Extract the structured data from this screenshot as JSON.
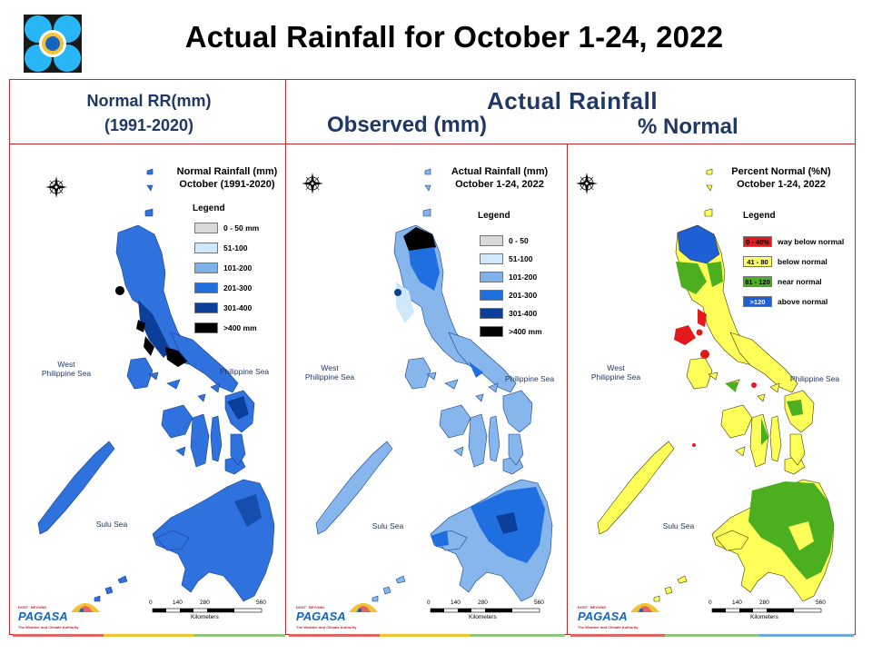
{
  "title": "Actual Rainfall for October 1-24, 2022",
  "headers": {
    "normal_line1": "Normal RR(mm)",
    "normal_line2": "(1991-2020)",
    "actual": "Actual Rainfall",
    "observed": "Observed (mm)",
    "percent": "% Normal"
  },
  "panels": [
    {
      "title_line1": "Normal Rainfall (mm)",
      "title_line2": "October (1991-2020)",
      "legend_title": "Legend",
      "legend": [
        {
          "label": "0 - 50 mm",
          "color": "#d9d9d9"
        },
        {
          "label": "51-100",
          "color": "#cfe8fb"
        },
        {
          "label": "101-200",
          "color": "#7fb2ea"
        },
        {
          "label": "201-300",
          "color": "#1f6fe0"
        },
        {
          "label": "301-400",
          "color": "#0c3f99"
        },
        {
          "label": ">400 mm",
          "color": "#000000"
        }
      ]
    },
    {
      "title_line1": "Actual Rainfall (mm)",
      "title_line2": "October 1-24, 2022",
      "legend_title": "Legend",
      "legend": [
        {
          "label": "0 - 50",
          "color": "#d9d9d9"
        },
        {
          "label": "51-100",
          "color": "#cfe8fb"
        },
        {
          "label": "101-200",
          "color": "#7fb2ea"
        },
        {
          "label": "201-300",
          "color": "#1f6fe0"
        },
        {
          "label": "301-400",
          "color": "#0c3f99"
        },
        {
          "label": ">400 mm",
          "color": "#000000"
        }
      ]
    },
    {
      "title_line1": "Percent Normal (%N)",
      "title_line2": "October 1-24, 2022",
      "legend_title": "Legend",
      "legend": [
        {
          "swatch": "0 - 40%",
          "label": "way below normal",
          "color": "#e31a1c"
        },
        {
          "swatch": "41 - 80",
          "label": "below normal",
          "color": "#ffff66"
        },
        {
          "swatch": "81 - 120",
          "label": "near normal",
          "color": "#4caf1f"
        },
        {
          "swatch": ">120",
          "label": "above normal",
          "color": "#1f5fd6"
        }
      ]
    }
  ],
  "map_labels": {
    "west_sea_line1": "West",
    "west_sea_line2": "Philippine Sea",
    "philippine_sea": "Philippine Sea",
    "sulu_sea": "Sulu Sea",
    "compass_n": "N",
    "compass_s": "S",
    "compass_e": "E",
    "compass_w": "W",
    "scale": [
      "0",
      "140",
      "280",
      "560"
    ],
    "scale_unit": "Kilometers"
  },
  "branding": {
    "pagasa": "PAGASA",
    "dost": "DOST",
    "beyond": "BEYOND",
    "tagline": "The Weather and Climate Authority"
  }
}
